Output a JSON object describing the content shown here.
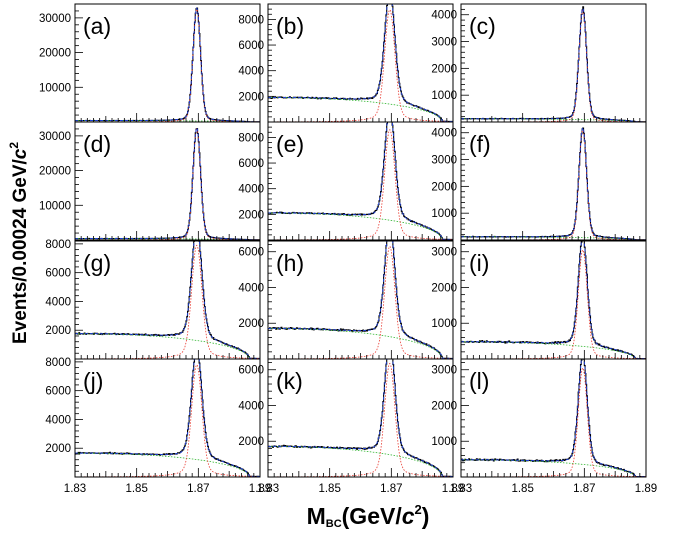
{
  "figure": {
    "ylabel_main": "Events/0.00024 GeV/",
    "ylabel_unit": "c",
    "ylabel_exp": "2",
    "xlabel_main": "M",
    "xlabel_sub": "BC",
    "xlabel_rest": "(GeV/",
    "xlabel_unit": "c",
    "xlabel_exp": "2",
    "xlabel_close": ")"
  },
  "colors": {
    "data": "#000000",
    "total_fit": "#1f3fd1",
    "signal": "#e8382f",
    "background": "#2fb52f",
    "frame": "#000000"
  },
  "x_ticks": [
    "1.83",
    "1.85",
    "1.87",
    "1.89"
  ],
  "chart_data": [
    {
      "type": "line",
      "label": "(a)",
      "xlim": [
        1.83,
        1.89
      ],
      "ylim": [
        0,
        34000
      ],
      "y_ticks": [
        10000,
        20000,
        30000
      ],
      "peak": 32500,
      "bg_level": 400,
      "sig_width": 0.0012,
      "sig_tail": 0.0035,
      "tail_frac": 0.05
    },
    {
      "type": "line",
      "label": "(b)",
      "xlim": [
        1.83,
        1.89
      ],
      "ylim": [
        0,
        9200
      ],
      "y_ticks": [
        2000,
        4000,
        6000,
        8000
      ],
      "peak": 8750,
      "bg_level": 1900,
      "sig_width": 0.0016,
      "sig_tail": 0.0045,
      "tail_frac": 0.1
    },
    {
      "type": "line",
      "label": "(c)",
      "xlim": [
        1.83,
        1.89
      ],
      "ylim": [
        0,
        4400
      ],
      "y_ticks": [
        1000,
        2000,
        3000,
        4000
      ],
      "peak": 4150,
      "bg_level": 120,
      "sig_width": 0.0012,
      "sig_tail": 0.0035,
      "tail_frac": 0.05
    },
    {
      "type": "line",
      "label": "(d)",
      "xlim": [
        1.83,
        1.89
      ],
      "ylim": [
        0,
        34000
      ],
      "y_ticks": [
        10000,
        20000,
        30000
      ],
      "peak": 32000,
      "bg_level": 400,
      "sig_width": 0.0012,
      "sig_tail": 0.0035,
      "tail_frac": 0.05
    },
    {
      "type": "line",
      "label": "(e)",
      "xlim": [
        1.83,
        1.89
      ],
      "ylim": [
        0,
        9200
      ],
      "y_ticks": [
        2000,
        4000,
        6000,
        8000
      ],
      "peak": 8600,
      "bg_level": 2100,
      "sig_width": 0.0016,
      "sig_tail": 0.0045,
      "tail_frac": 0.1
    },
    {
      "type": "line",
      "label": "(f)",
      "xlim": [
        1.83,
        1.89
      ],
      "ylim": [
        0,
        4400
      ],
      "y_ticks": [
        1000,
        2000,
        3000,
        4000
      ],
      "peak": 4100,
      "bg_level": 120,
      "sig_width": 0.0012,
      "sig_tail": 0.0035,
      "tail_frac": 0.05
    },
    {
      "type": "line",
      "label": "(g)",
      "xlim": [
        1.83,
        1.89
      ],
      "ylim": [
        0,
        8200
      ],
      "y_ticks": [
        2000,
        4000,
        6000,
        8000
      ],
      "peak": 7900,
      "bg_level": 1750,
      "sig_width": 0.0016,
      "sig_tail": 0.0045,
      "tail_frac": 0.1
    },
    {
      "type": "line",
      "label": "(h)",
      "xlim": [
        1.83,
        1.89
      ],
      "ylim": [
        0,
        6600
      ],
      "y_ticks": [
        2000,
        4000,
        6000
      ],
      "peak": 6300,
      "bg_level": 1700,
      "sig_width": 0.0016,
      "sig_tail": 0.0045,
      "tail_frac": 0.1
    },
    {
      "type": "line",
      "label": "(i)",
      "xlim": [
        1.83,
        1.89
      ],
      "ylim": [
        0,
        3300
      ],
      "y_ticks": [
        1000,
        2000,
        3000
      ],
      "peak": 3050,
      "bg_level": 480,
      "sig_width": 0.0014,
      "sig_tail": 0.004,
      "tail_frac": 0.08
    },
    {
      "type": "line",
      "label": "(j)",
      "xlim": [
        1.83,
        1.89
      ],
      "ylim": [
        0,
        8200
      ],
      "y_ticks": [
        2000,
        4000,
        6000,
        8000
      ],
      "peak": 7800,
      "bg_level": 1650,
      "sig_width": 0.0016,
      "sig_tail": 0.0045,
      "tail_frac": 0.1
    },
    {
      "type": "line",
      "label": "(k)",
      "xlim": [
        1.83,
        1.89
      ],
      "ylim": [
        0,
        6600
      ],
      "y_ticks": [
        2000,
        4000,
        6000
      ],
      "peak": 6350,
      "bg_level": 1700,
      "sig_width": 0.0016,
      "sig_tail": 0.0045,
      "tail_frac": 0.1
    },
    {
      "type": "line",
      "label": "(l)",
      "xlim": [
        1.83,
        1.89
      ],
      "ylim": [
        0,
        3300
      ],
      "y_ticks": [
        1000,
        2000,
        3000
      ],
      "peak": 3050,
      "bg_level": 480,
      "sig_width": 0.0014,
      "sig_tail": 0.004,
      "tail_frac": 0.08
    }
  ]
}
